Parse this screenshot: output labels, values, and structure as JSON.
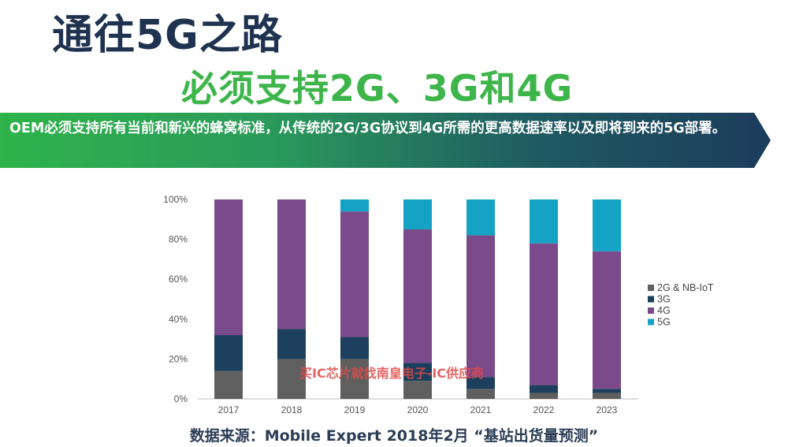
{
  "header": {
    "title": "通往5G之路",
    "subtitle": "必须支持2G、3G和4G"
  },
  "banner": {
    "text": "OEM必须支持所有当前和新兴的蜂窝标准，从传统的2G/3G协议到4G所需的更高数据速率以及即将到来的5G部署。"
  },
  "watermark": "买IC芯片就找南皇电子-IC供应商",
  "source": "数据来源：Mobile Expert 2018年2月 “基站出货量预测”",
  "colors": {
    "2g": "#5f5f5f",
    "3g": "#1b3f5c",
    "4g": "#7b4a8b",
    "5g": "#14a3c4"
  },
  "chart_data": {
    "type": "bar",
    "stacked": true,
    "categories": [
      "2017",
      "2018",
      "2019",
      "2020",
      "2021",
      "2022",
      "2023"
    ],
    "series": [
      {
        "name": "2G & NB-IoT",
        "color_key": "2g",
        "values": [
          14,
          20,
          20,
          9,
          5,
          3,
          3
        ]
      },
      {
        "name": "3G",
        "color_key": "3g",
        "values": [
          18,
          15,
          11,
          9,
          6,
          4,
          2
        ]
      },
      {
        "name": "4G",
        "color_key": "4g",
        "values": [
          68,
          65,
          63,
          67,
          71,
          71,
          69
        ]
      },
      {
        "name": "5G",
        "color_key": "5g",
        "values": [
          0,
          0,
          6,
          15,
          18,
          22,
          26
        ]
      }
    ],
    "ylim": [
      0,
      100
    ],
    "yticks": [
      "0%",
      "20%",
      "40%",
      "60%",
      "80%",
      "100%"
    ],
    "grid": false,
    "legend_position": "right"
  }
}
